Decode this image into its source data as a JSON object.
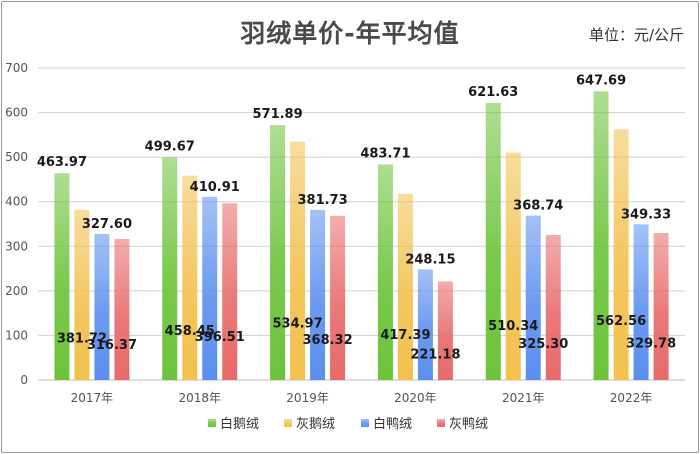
{
  "title": "羽绒单价-年平均值",
  "unit_note": "单位：元/公斤",
  "chart_data": {
    "type": "bar",
    "title": "羽绒单价-年平均值",
    "categories": [
      "2017年",
      "2018年",
      "2019年",
      "2020年",
      "2021年",
      "2022年"
    ],
    "series": [
      {
        "name": "白鹅绒",
        "color": "#6cc33a",
        "values": [
          463.97,
          499.67,
          571.89,
          483.71,
          621.63,
          647.69
        ]
      },
      {
        "name": "灰鹅绒",
        "color": "#f2c14e",
        "values": [
          381.72,
          458.45,
          534.97,
          417.39,
          510.34,
          562.56
        ]
      },
      {
        "name": "白鸭绒",
        "color": "#5b8fef",
        "values": [
          327.6,
          410.91,
          381.73,
          248.15,
          368.74,
          349.33
        ]
      },
      {
        "name": "灰鸭绒",
        "color": "#e86a6a",
        "values": [
          316.37,
          396.51,
          368.32,
          221.18,
          325.3,
          329.78
        ]
      }
    ],
    "data_labels": [
      [
        "463.97",
        "499.67",
        "571.89",
        "483.71",
        "621.63",
        "647.69"
      ],
      [
        "381.72",
        "458.45",
        "534.97",
        "417.39",
        "510.34",
        "562.56"
      ],
      [
        "327.60",
        "410.91",
        "381.73",
        "248.15",
        "368.74",
        "349.33"
      ],
      [
        "316.37",
        "396.51",
        "368.32",
        "221.18",
        "325.30",
        "329.78"
      ]
    ],
    "ylim": [
      0,
      700
    ],
    "yticks": [
      0,
      100,
      200,
      300,
      400,
      500,
      600,
      700
    ],
    "grid": true,
    "legend": "bottom"
  }
}
